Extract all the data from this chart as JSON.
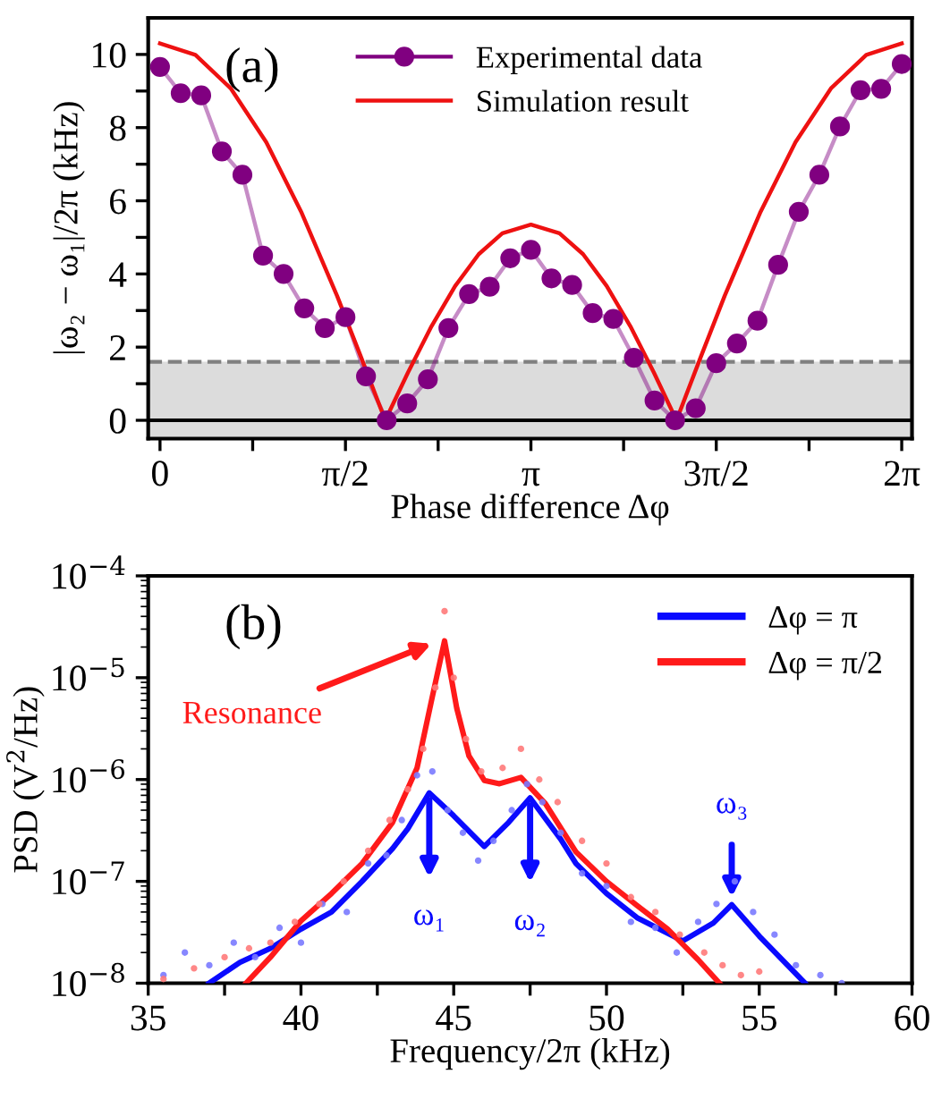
{
  "chart_data": [
    {
      "type": "line",
      "xlabel": "Phase difference Δφ",
      "ylabel": "|ω₂ − ω₁|/2π (kHz)",
      "annotations": [
        "(a)"
      ],
      "xlim": [
        -0.1,
        6.37
      ],
      "ylim": [
        -0.5,
        11.0
      ],
      "xticks": [
        0,
        {
          "value": 0.785,
          "label": null
        },
        {
          "value": 1.571,
          "label": "π/2"
        },
        {
          "value": 2.356,
          "label": null
        },
        {
          "value": 3.142,
          "label": "π"
        },
        {
          "value": 3.927,
          "label": null
        },
        {
          "value": 4.712,
          "label": "3π/2"
        },
        {
          "value": 5.498,
          "label": null
        },
        {
          "value": 6.283,
          "label": "2π"
        }
      ],
      "yticks": [
        0,
        {
          "value": 1,
          "label": null
        },
        2,
        {
          "value": 3,
          "label": null
        },
        4,
        {
          "value": 5,
          "label": null
        },
        6,
        {
          "value": 7,
          "label": null
        },
        8,
        {
          "value": 9,
          "label": null
        },
        10
      ],
      "legend": "top",
      "grid": false,
      "bands": [
        {
          "axis": "y",
          "from": -0.5,
          "to": 1.6,
          "color": "#dcdcdc"
        }
      ],
      "ref_lines": [
        {
          "axis": "y",
          "value": 0,
          "color": "#000000",
          "line_style": "solid"
        },
        {
          "axis": "y",
          "value": 1.6,
          "color": "#808080",
          "line_style": "dashed"
        }
      ],
      "series": [
        {
          "name": "Experimental data",
          "marker": "circle",
          "color": "#800080",
          "x": [
            0,
            0.175,
            0.349,
            0.524,
            0.698,
            0.873,
            1.047,
            1.222,
            1.396,
            1.571,
            1.745,
            1.92,
            2.094,
            2.269,
            2.443,
            2.618,
            2.793,
            2.967,
            3.142,
            3.316,
            3.491,
            3.665,
            3.84,
            4.014,
            4.189,
            4.363,
            4.538,
            4.712,
            4.887,
            5.061,
            5.236,
            5.411,
            5.585,
            5.76,
            5.934,
            6.109,
            6.283
          ],
          "values": [
            9.66,
            8.94,
            8.88,
            7.35,
            6.71,
            4.5,
            4.0,
            3.06,
            2.52,
            2.82,
            1.2,
            0,
            0.46,
            1.12,
            2.52,
            3.45,
            3.65,
            4.43,
            4.66,
            3.88,
            3.7,
            2.93,
            2.77,
            1.71,
            0.54,
            0,
            0.33,
            1.56,
            2.1,
            2.72,
            4.25,
            5.7,
            6.71,
            8.03,
            9.02,
            9.06,
            9.74
          ]
        },
        {
          "name": "Simulation result",
          "marker": "none",
          "color": "#ee1111",
          "x": [
            0,
            0.3,
            0.6,
            0.9,
            1.2,
            1.5,
            1.7,
            1.908,
            2.1,
            2.3,
            2.5,
            2.7,
            2.9,
            3.142,
            3.384,
            3.584,
            3.784,
            3.984,
            4.184,
            4.375,
            4.583,
            4.783,
            5.083,
            5.383,
            5.683,
            5.983,
            6.283
          ],
          "values": [
            10.3,
            9.99,
            9.07,
            7.6,
            5.67,
            3.4,
            1.75,
            0,
            1.3,
            2.57,
            3.67,
            4.54,
            5.11,
            5.35,
            5.11,
            4.54,
            3.67,
            2.57,
            1.3,
            0,
            1.75,
            3.4,
            5.67,
            7.6,
            9.07,
            9.99,
            10.3
          ]
        }
      ]
    },
    {
      "type": "line",
      "xlabel": "Frequency/2π (kHz)",
      "ylabel": "PSD (V$^{2}$/Hz)",
      "log": "y",
      "annotations": [
        "(b)",
        {
          "text": "Resonance",
          "x": 44.5,
          "y": 2.3e-05
        },
        {
          "text": "ω₁",
          "x": 44.2,
          "y": 7.4e-07
        },
        {
          "text": "ω₂",
          "x": 47.5,
          "y": 6.6e-07
        },
        {
          "text": "ω₃",
          "x": 54.1,
          "y": 5.9e-08
        }
      ],
      "xlim": [
        35,
        60
      ],
      "ylim": [
        1e-08,
        0.0001
      ],
      "xticks": [
        35,
        {
          "value": 37.5,
          "label": null
        },
        40,
        {
          "value": 42.5,
          "label": null
        },
        45,
        {
          "value": 47.5,
          "label": null
        },
        50,
        {
          "value": 52.5,
          "label": null
        },
        55,
        {
          "value": 57.5,
          "label": null
        },
        60
      ],
      "yticks": [
        {
          "value": 1e-08,
          "label": "10$^{−8}$"
        },
        {
          "value": 1e-07,
          "label": "10$^{−7}$"
        },
        {
          "value": 1e-06,
          "label": "10$^{−6}$"
        },
        {
          "value": 1e-05,
          "label": "10$^{−5}$"
        },
        {
          "value": 0.0001,
          "label": "10$^{−4}$"
        }
      ],
      "legend": "top right",
      "grid": false,
      "series": [
        {
          "type": "scatter",
          "color": "#7a7aff",
          "x": [
            35.5,
            36.2,
            37,
            37.8,
            38.5,
            39.3,
            40,
            40.7,
            41.5,
            42.2,
            42.8,
            43.3,
            43.8,
            44.3,
            44.8,
            45.3,
            45.8,
            46.3,
            46.9,
            47.4,
            47.9,
            48.5,
            49.2,
            50,
            50.8,
            51.6,
            52.3,
            53,
            53.6,
            54.2,
            54.8,
            55.5,
            56.2,
            57,
            57.7
          ],
          "values": [
            1.2e-08,
            2e-08,
            1.5e-08,
            2.5e-08,
            1.8e-08,
            3.5e-08,
            2.5e-08,
            6e-08,
            5e-08,
            1.5e-07,
            1.8e-07,
            4e-07,
            1.1e-06,
            1.2e-06,
            5e-07,
            3e-07,
            1.6e-07,
            2.5e-07,
            5e-07,
            9e-07,
            6e-07,
            3e-07,
            1.2e-07,
            9e-08,
            4e-08,
            3.5e-08,
            2e-08,
            4e-08,
            6e-08,
            1e-07,
            5e-08,
            3e-08,
            1.5e-08,
            1.2e-08,
            1e-08
          ]
        },
        {
          "type": "scatter",
          "color": "#ff7a7a",
          "x": [
            35.5,
            36.5,
            37.5,
            38.3,
            39,
            39.8,
            40.6,
            41.4,
            42.2,
            42.9,
            43.5,
            44,
            44.4,
            44.7,
            45,
            45.4,
            45.9,
            46.6,
            47.2,
            47.8,
            48.4,
            49.2,
            50,
            50.8,
            51.6,
            52.4,
            53.2,
            53.8,
            54.4,
            55
          ],
          "values": [
            1.1e-08,
            1.4e-08,
            1.8e-08,
            2.2e-08,
            2.5e-08,
            4e-08,
            6e-08,
            1e-07,
            2e-07,
            4e-07,
            8e-07,
            2e-06,
            8e-06,
            4.5e-05,
            1e-05,
            2.5e-06,
            1.2e-06,
            1.3e-06,
            2e-06,
            1e-06,
            6e-07,
            2.5e-07,
            1.5e-07,
            7e-08,
            5e-08,
            3e-08,
            2e-08,
            1.5e-08,
            1.2e-08,
            1.3e-08
          ]
        },
        {
          "name": "Δφ = π",
          "color": "#0a0aff",
          "x": [
            36.99,
            38,
            39,
            40,
            41,
            42,
            43,
            43.5,
            44.2,
            45,
            46,
            46.8,
            47.5,
            48.5,
            49,
            50,
            51,
            52.5,
            53.5,
            54.1,
            55,
            56.5
          ],
          "values": [
            1e-08,
            1.6e-08,
            2.2e-08,
            3.4e-08,
            5e-08,
            1e-07,
            2.1e-07,
            3.3e-07,
            7.4e-07,
            4.4e-07,
            2.2e-07,
            3.8e-07,
            6.6e-07,
            2.6e-07,
            1.5e-07,
            7.6e-08,
            4.4e-08,
            2.6e-08,
            3.9e-08,
            5.9e-08,
            2.9e-08,
            1e-08
          ]
        },
        {
          "name": "Δφ = π/2",
          "color": "#ff1a1a",
          "x": [
            38.2,
            39,
            40,
            41,
            42,
            43,
            43.8,
            44.3,
            44.7,
            45.1,
            45.5,
            46,
            46.5,
            47.2,
            48,
            49,
            50,
            51,
            52,
            53,
            53.7
          ],
          "values": [
            1e-08,
            1.8e-08,
            4.1e-08,
            7.6e-08,
            1.5e-07,
            3.8e-07,
            1.3e-06,
            6.5e-06,
            2.3e-05,
            5e-06,
            1.7e-06,
            9.8e-07,
            9.1e-07,
            1.05e-06,
            5.8e-07,
            1.95e-07,
            1e-07,
            5.8e-08,
            3.4e-08,
            1.7e-08,
            1e-08
          ]
        }
      ]
    }
  ]
}
